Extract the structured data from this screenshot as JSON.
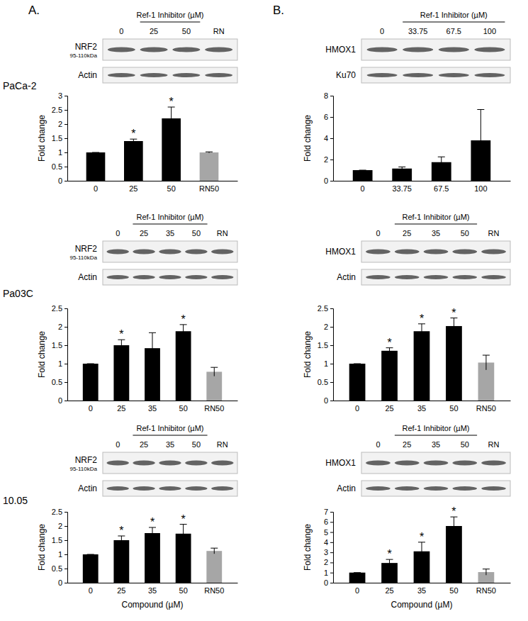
{
  "panel_labels": [
    "A.",
    "B."
  ],
  "cell_lines": [
    "PaCa-2",
    "Pa03C",
    "10.05"
  ],
  "chart_data": [
    {
      "type": "bar",
      "y_label": "Fold change",
      "categories": [
        "0",
        "25",
        "50",
        "RN50"
      ],
      "values": [
        1,
        1.4,
        2.2,
        1.0
      ],
      "errors": [
        0,
        0.07,
        0.4,
        0.02
      ],
      "annotations": [
        null,
        "*",
        "*",
        null
      ],
      "colors": [
        "#000000",
        "#000000",
        "#000000",
        "#a6a6a6"
      ],
      "ylim": [
        0,
        3
      ],
      "yticks": [
        0,
        0.5,
        1,
        1.5,
        2,
        2.5,
        3
      ],
      "blot": {
        "header": "Ref-1 Inhibitor (µM)",
        "lanes": [
          "0",
          "25",
          "50",
          "RN"
        ],
        "protein": "NRF2",
        "size": "95-110kDa",
        "loading": "Actin"
      }
    },
    {
      "type": "bar",
      "y_label": "Fold change",
      "categories": [
        "0",
        "33.75",
        "67.5",
        "100"
      ],
      "values": [
        1,
        1.15,
        1.75,
        3.8
      ],
      "errors": [
        0,
        0.15,
        0.5,
        2.9
      ],
      "annotations": [
        null,
        null,
        null,
        null
      ],
      "colors": [
        "#000000",
        "#000000",
        "#000000",
        "#000000"
      ],
      "ylim": [
        0,
        8
      ],
      "yticks": [
        0,
        2,
        4,
        6,
        8
      ],
      "blot": {
        "header": "Ref-1 Inhibitor (µM)",
        "lanes": [
          "0",
          "33.75",
          "67.5",
          "100"
        ],
        "protein": "HMOX1",
        "loading": "Ku70"
      }
    },
    {
      "type": "bar",
      "y_label": "Fold change",
      "categories": [
        "0",
        "25",
        "35",
        "50",
        "RN50"
      ],
      "values": [
        1,
        1.5,
        1.42,
        1.88,
        0.78
      ],
      "errors": [
        0,
        0.15,
        0.42,
        0.18,
        0.12
      ],
      "annotations": [
        null,
        "*",
        null,
        "*",
        null
      ],
      "colors": [
        "#000000",
        "#000000",
        "#000000",
        "#000000",
        "#a6a6a6"
      ],
      "ylim": [
        0,
        2.5
      ],
      "yticks": [
        0,
        0.5,
        1,
        1.5,
        2,
        2.5
      ],
      "blot": {
        "header": "Ref-1 Inhibitor (µM)",
        "lanes": [
          "0",
          "25",
          "35",
          "50",
          "RN"
        ],
        "protein": "NRF2",
        "size": "95-110kDa",
        "loading": "Actin"
      }
    },
    {
      "type": "bar",
      "y_label": "Fold change",
      "categories": [
        "0",
        "25",
        "35",
        "50",
        "RN50"
      ],
      "values": [
        1,
        1.35,
        1.88,
        2.02,
        1.03
      ],
      "errors": [
        0,
        0.08,
        0.2,
        0.22,
        0.2
      ],
      "annotations": [
        null,
        "*",
        "*",
        "*",
        null
      ],
      "colors": [
        "#000000",
        "#000000",
        "#000000",
        "#000000",
        "#a6a6a6"
      ],
      "ylim": [
        0,
        2.5
      ],
      "yticks": [
        0,
        0.5,
        1,
        1.5,
        2,
        2.5
      ],
      "blot": {
        "header": "Ref-1 Inhibitor (µM)",
        "lanes": [
          "0",
          "25",
          "35",
          "50",
          "RN"
        ],
        "protein": "HMOX1",
        "loading": "Actin"
      }
    },
    {
      "type": "bar",
      "y_label": "Fold change",
      "x_label": "Compound (µM)",
      "categories": [
        "0",
        "25",
        "35",
        "50",
        "RN50"
      ],
      "values": [
        1,
        1.5,
        1.75,
        1.73,
        1.12
      ],
      "errors": [
        0,
        0.15,
        0.2,
        0.33,
        0.1
      ],
      "annotations": [
        null,
        "*",
        "*",
        "*",
        null
      ],
      "colors": [
        "#000000",
        "#000000",
        "#000000",
        "#000000",
        "#a6a6a6"
      ],
      "ylim": [
        0,
        2.5
      ],
      "yticks": [
        0,
        0.5,
        1,
        1.5,
        2,
        2.5
      ],
      "blot": {
        "header": "Ref-1 Inhibitor (µM)",
        "lanes": [
          "0",
          "25",
          "35",
          "50",
          "RN"
        ],
        "protein": "NRF2",
        "size": "95-110kDa",
        "loading": "Actin"
      }
    },
    {
      "type": "bar",
      "y_label": "Fold change",
      "x_label": "Compound (µM)",
      "categories": [
        "0",
        "25",
        "35",
        "50",
        "RN50"
      ],
      "values": [
        1,
        1.95,
        3.1,
        5.6,
        1.05
      ],
      "errors": [
        0,
        0.35,
        0.9,
        0.9,
        0.3
      ],
      "annotations": [
        null,
        "*",
        "*",
        "*",
        null
      ],
      "colors": [
        "#000000",
        "#000000",
        "#000000",
        "#000000",
        "#a6a6a6"
      ],
      "ylim": [
        0,
        7
      ],
      "yticks": [
        0,
        1,
        2,
        3,
        4,
        5,
        6,
        7
      ],
      "blot": {
        "header": "Ref-1 Inhibitor (µM)",
        "lanes": [
          "0",
          "25",
          "35",
          "50",
          "RN"
        ],
        "protein": "HMOX1",
        "loading": "Actin"
      }
    }
  ]
}
